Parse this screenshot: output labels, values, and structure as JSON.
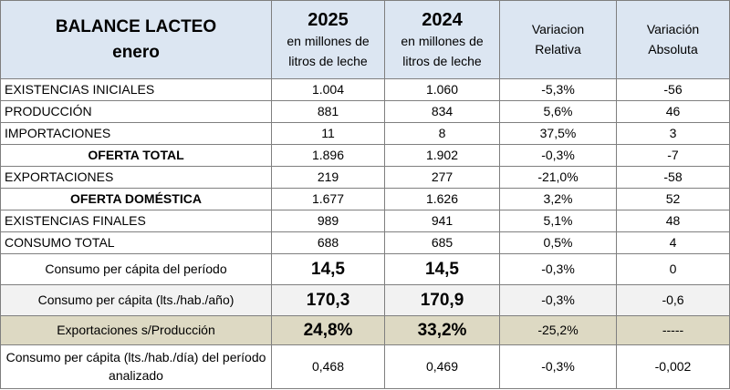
{
  "header": {
    "title_line1": "BALANCE LACTEO",
    "title_line2": "enero",
    "col2025_year": "2025",
    "col2025_unit1": "en millones de",
    "col2025_unit2": "litros de leche",
    "col2024_year": "2024",
    "col2024_unit1": "en millones de",
    "col2024_unit2": "litros de leche",
    "var_rel_1": "Variacion",
    "var_rel_2": "Relativa",
    "var_abs_1": "Variación",
    "var_abs_2": "Absoluta"
  },
  "rows": [
    {
      "label": "EXISTENCIAS  INICIALES",
      "v2025": "1.004",
      "v2024": "1.060",
      "rel": "-5,3%",
      "abs": "-56"
    },
    {
      "label": "PRODUCCIÓN",
      "v2025": "881",
      "v2024": "834",
      "rel": "5,6%",
      "abs": "46"
    },
    {
      "label": "IMPORTACIONES",
      "v2025": "11",
      "v2024": "8",
      "rel": "37,5%",
      "abs": "3"
    },
    {
      "label": "OFERTA TOTAL",
      "v2025": "1.896",
      "v2024": "1.902",
      "rel": "-0,3%",
      "abs": "-7"
    },
    {
      "label": "EXPORTACIONES",
      "v2025": "219",
      "v2024": "277",
      "rel": "-21,0%",
      "abs": "-58"
    },
    {
      "label": "OFERTA DOMÉSTICA",
      "v2025": "1.677",
      "v2024": "1.626",
      "rel": "3,2%",
      "abs": "52"
    },
    {
      "label": "EXISTENCIAS FINALES",
      "v2025": "989",
      "v2024": "941",
      "rel": "5,1%",
      "abs": "48"
    },
    {
      "label": "CONSUMO TOTAL",
      "v2025": "688",
      "v2024": "685",
      "rel": "0,5%",
      "abs": "4"
    },
    {
      "label": "Consumo per cápita del período",
      "v2025": "14,5",
      "v2024": "14,5",
      "rel": "-0,3%",
      "abs": "0"
    },
    {
      "label": "Consumo per cápita (lts./hab./año)",
      "v2025": "170,3",
      "v2024": "170,9",
      "rel": "-0,3%",
      "abs": "-0,6"
    },
    {
      "label": "Exportaciones s/Producción",
      "v2025": "24,8%",
      "v2024": "33,2%",
      "rel": "-25,2%",
      "abs": "-----"
    },
    {
      "label": "Consumo per cápita (lts./hab./día) del período analizado",
      "v2025": "0,468",
      "v2024": "0,469",
      "rel": "-0,3%",
      "abs": "-0,002"
    }
  ],
  "colors": {
    "header_bg": "#dce6f2",
    "grey_row_bg": "#f2f2f2",
    "tan_row_bg": "#ddd9c3",
    "border": "#7f7f7f"
  }
}
